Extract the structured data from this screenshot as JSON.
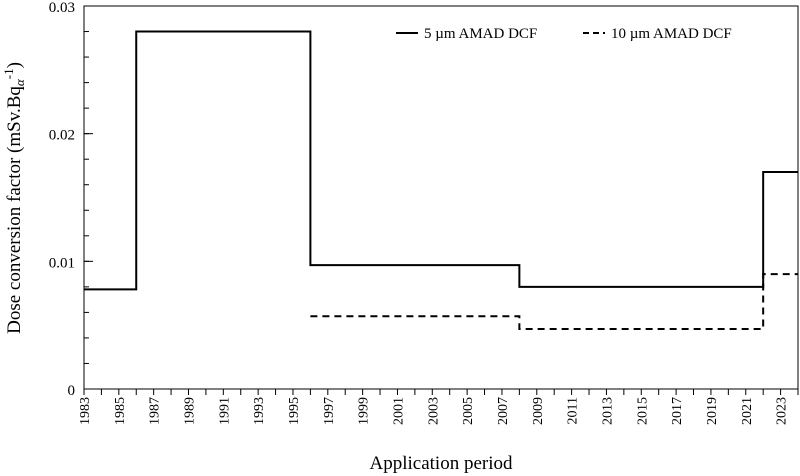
{
  "chart_data": {
    "type": "line",
    "step": true,
    "xlabel": "Application period",
    "ylabel": {
      "main": "Dose conversion factor (mSv.Bq",
      "sub": "α",
      "sup": "-1",
      "close": ")"
    },
    "xlim": [
      1983,
      2024
    ],
    "ylim": [
      0,
      0.03
    ],
    "yticks": [
      {
        "value": 0,
        "label": "0"
      },
      {
        "value": 0.01,
        "label": "0.01"
      },
      {
        "value": 0.02,
        "label": "0.02"
      },
      {
        "value": 0.03,
        "label": "0.03"
      }
    ],
    "yminor_step": 0.002,
    "xticks": [
      "1983",
      "1985",
      "1987",
      "1989",
      "1991",
      "1993",
      "1995",
      "1997",
      "1999",
      "2001",
      "2003",
      "2005",
      "2007",
      "2009",
      "2011",
      "2013",
      "2015",
      "2017",
      "2019",
      "2021",
      "2023"
    ],
    "xminor_step": 1,
    "grid": false,
    "legend_position": "top-right",
    "series": [
      {
        "name": "5 µm AMAD DCF",
        "style": "solid",
        "color": "#000000",
        "points": [
          [
            1983,
            0.0078
          ],
          [
            1986,
            0.0078
          ],
          [
            1986,
            0.028
          ],
          [
            1996,
            0.028
          ],
          [
            1996,
            0.0097
          ],
          [
            2008,
            0.0097
          ],
          [
            2008,
            0.008
          ],
          [
            2022,
            0.008
          ],
          [
            2022,
            0.017
          ],
          [
            2024,
            0.017
          ]
        ]
      },
      {
        "name": "10 µm AMAD DCF",
        "style": "dashed",
        "color": "#000000",
        "points": [
          [
            1996,
            0.0057
          ],
          [
            2008,
            0.0057
          ],
          [
            2008,
            0.0047
          ],
          [
            2022,
            0.0047
          ],
          [
            2022,
            0.009
          ],
          [
            2024,
            0.009
          ]
        ]
      }
    ]
  }
}
